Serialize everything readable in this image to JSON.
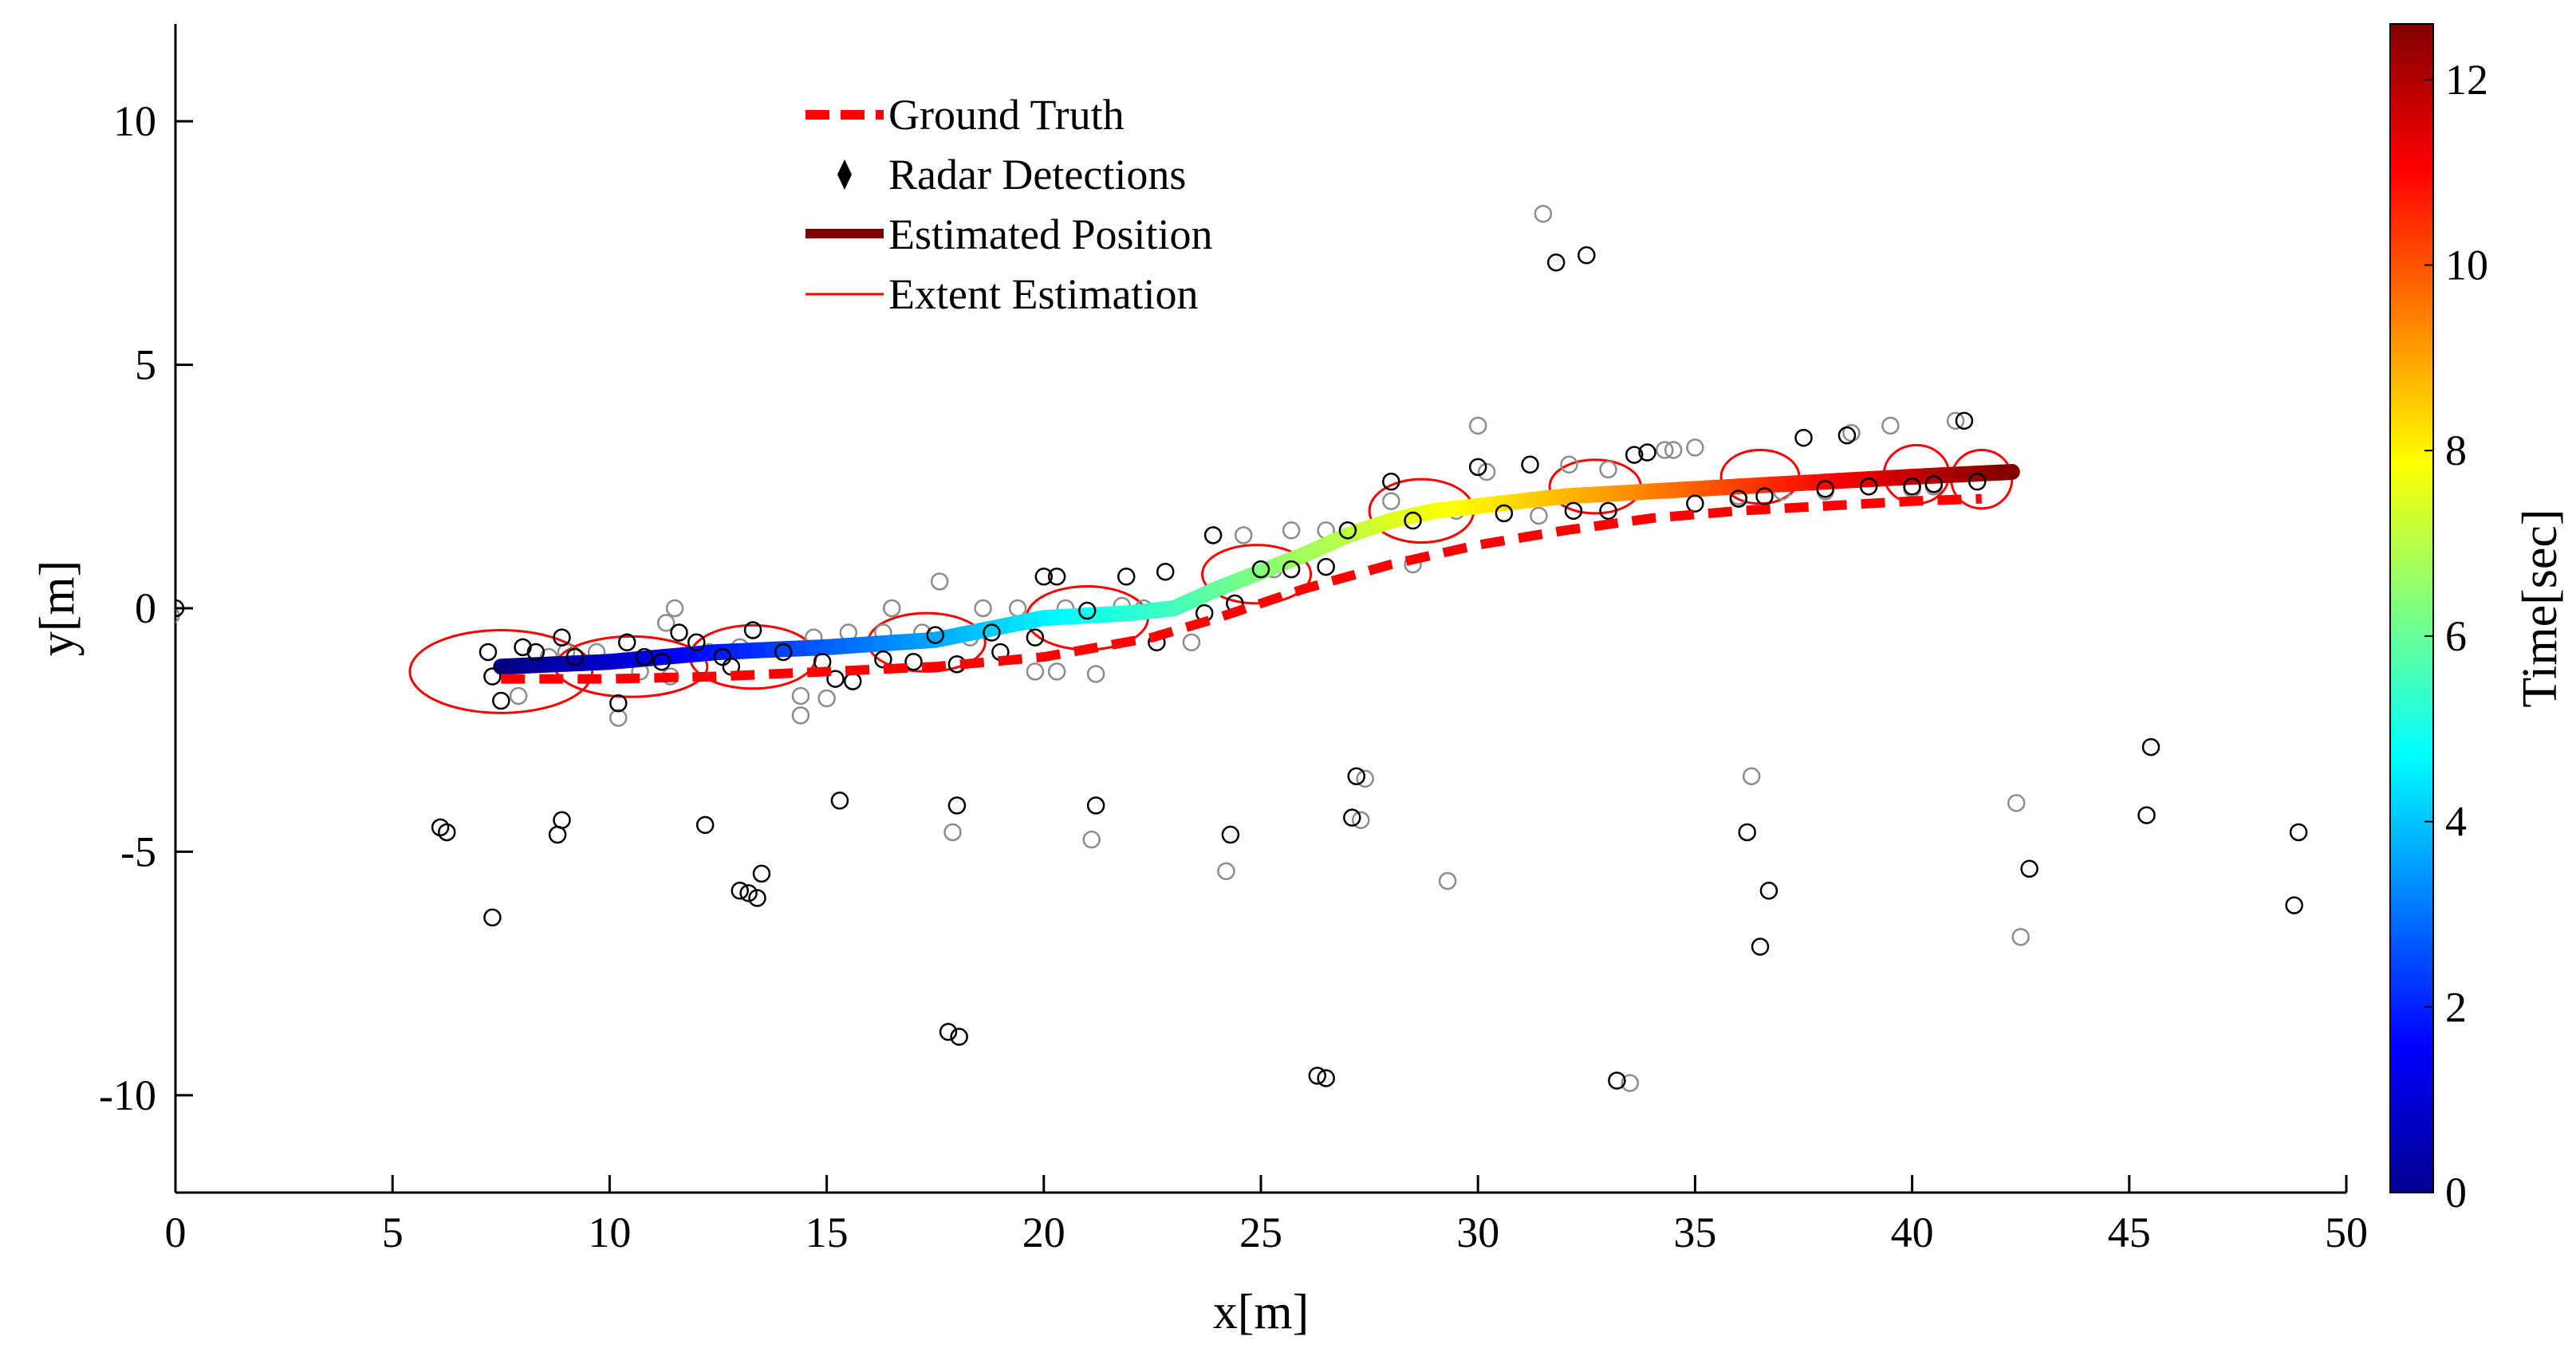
{
  "chart_data": {
    "type": "scatter",
    "xlabel": "x[m]",
    "ylabel": "y[m]",
    "xlim": [
      0,
      50
    ],
    "ylim": [
      -12,
      12
    ],
    "xticks": [
      0,
      5,
      10,
      15,
      20,
      25,
      30,
      35,
      40,
      45,
      50
    ],
    "yticks": [
      -10,
      -5,
      0,
      5,
      10
    ],
    "xtick_labels": [
      "0",
      "5",
      "10",
      "15",
      "20",
      "25",
      "30",
      "35",
      "40",
      "45",
      "50"
    ],
    "ytick_labels": [
      "-10",
      "-5",
      "0",
      "5",
      "10"
    ],
    "grid": false,
    "legend": {
      "placement": "top-center",
      "entries": [
        "Ground Truth",
        "Radar Detections",
        "Estimated Position",
        "Extent Estimation"
      ]
    },
    "colorbar": {
      "label": "Time[sec]",
      "range": [
        0,
        12.6
      ],
      "ticks": [
        0,
        2,
        4,
        6,
        8,
        10,
        12
      ],
      "tick_labels": [
        "0",
        "2",
        "4",
        "6",
        "8",
        "10",
        "12"
      ],
      "colormap": "jet"
    },
    "series": [
      {
        "name": "Ground Truth",
        "style": "dashed",
        "color": "#ff0000",
        "x": [
          7.5,
          10,
          12.5,
          15,
          17.5,
          20,
          22.5,
          24,
          26,
          28,
          30,
          32,
          34,
          36,
          38,
          40,
          41.6
        ],
        "y": [
          -1.45,
          -1.45,
          -1.4,
          -1.3,
          -1.2,
          -1.0,
          -0.6,
          -0.2,
          0.4,
          0.9,
          1.3,
          1.6,
          1.85,
          2.0,
          2.1,
          2.2,
          2.25
        ]
      },
      {
        "name": "Estimated Position",
        "color": "#800000",
        "colored_by": "time",
        "x": [
          7.5,
          10,
          12.5,
          15,
          17.5,
          20,
          22,
          23,
          24,
          25,
          26,
          27,
          28,
          29,
          30,
          32,
          34,
          36,
          38,
          40,
          42.3
        ],
        "y": [
          -1.2,
          -1.1,
          -0.9,
          -0.8,
          -0.65,
          -0.2,
          -0.1,
          0.0,
          0.4,
          0.75,
          1.1,
          1.5,
          1.8,
          2.0,
          2.1,
          2.3,
          2.4,
          2.5,
          2.6,
          2.7,
          2.8
        ],
        "t": [
          0.0,
          0.9,
          1.8,
          2.7,
          3.6,
          4.5,
          5.2,
          5.5,
          5.9,
          6.3,
          6.7,
          7.0,
          7.4,
          7.7,
          8.0,
          8.7,
          9.4,
          10.2,
          10.9,
          11.7,
          12.6
        ]
      },
      {
        "name": "Extent Estimation",
        "color": "#ff0000",
        "ellipses": [
          {
            "cx": 7.5,
            "cy": -1.3,
            "rx": 2.1,
            "ry": 0.85
          },
          {
            "cx": 10.5,
            "cy": -1.2,
            "rx": 1.75,
            "ry": 0.62
          },
          {
            "cx": 13.3,
            "cy": -1.0,
            "rx": 1.45,
            "ry": 0.65
          },
          {
            "cx": 17.3,
            "cy": -0.7,
            "rx": 1.35,
            "ry": 0.6
          },
          {
            "cx": 21.0,
            "cy": -0.2,
            "rx": 1.4,
            "ry": 0.65
          },
          {
            "cx": 24.9,
            "cy": 0.7,
            "rx": 1.25,
            "ry": 0.6
          },
          {
            "cx": 28.7,
            "cy": 2.0,
            "rx": 1.2,
            "ry": 0.65
          },
          {
            "cx": 32.7,
            "cy": 2.5,
            "rx": 1.05,
            "ry": 0.55
          },
          {
            "cx": 36.5,
            "cy": 2.7,
            "rx": 0.9,
            "ry": 0.55
          },
          {
            "cx": 40.1,
            "cy": 2.75,
            "rx": 0.75,
            "ry": 0.6
          },
          {
            "cx": 41.6,
            "cy": 2.65,
            "rx": 0.7,
            "ry": 0.6
          }
        ]
      },
      {
        "name": "Radar Detections",
        "marker": "open-circle",
        "points_black": [
          [
            0,
            0
          ],
          [
            7.2,
            -0.9
          ],
          [
            7.3,
            -1.4
          ],
          [
            7.5,
            -1.9
          ],
          [
            8.0,
            -0.8
          ],
          [
            8.3,
            -0.9
          ],
          [
            8.9,
            -0.6
          ],
          [
            9.2,
            -1.0
          ],
          [
            10.2,
            -1.95
          ],
          [
            10.4,
            -0.7
          ],
          [
            10.8,
            -1.0
          ],
          [
            11.2,
            -1.1
          ],
          [
            11.6,
            -0.5
          ],
          [
            12.0,
            -0.7
          ],
          [
            12.6,
            -1.0
          ],
          [
            12.8,
            -1.2
          ],
          [
            13.3,
            -0.45
          ],
          [
            14.0,
            -0.9
          ],
          [
            14.9,
            -1.1
          ],
          [
            15.2,
            -1.45
          ],
          [
            15.6,
            -1.5
          ],
          [
            16.3,
            -1.05
          ],
          [
            17.0,
            -1.1
          ],
          [
            17.5,
            -0.55
          ],
          [
            18.0,
            -1.15
          ],
          [
            18.8,
            -0.5
          ],
          [
            19.0,
            -0.9
          ],
          [
            19.8,
            -0.6
          ],
          [
            20.0,
            0.65
          ],
          [
            20.3,
            0.65
          ],
          [
            21.0,
            -0.05
          ],
          [
            21.9,
            0.65
          ],
          [
            22.6,
            -0.7
          ],
          [
            22.8,
            0.75
          ],
          [
            23.7,
            -0.1
          ],
          [
            23.9,
            1.5
          ],
          [
            24.4,
            0.1
          ],
          [
            25.0,
            0.8
          ],
          [
            25.7,
            0.8
          ],
          [
            26.5,
            0.85
          ],
          [
            27.0,
            1.6
          ],
          [
            28.0,
            2.6
          ],
          [
            28.5,
            1.8
          ],
          [
            30.0,
            2.9
          ],
          [
            30.6,
            1.95
          ],
          [
            31.2,
            2.95
          ],
          [
            32.2,
            2.0
          ],
          [
            33.0,
            2.0
          ],
          [
            33.6,
            3.15
          ],
          [
            33.9,
            3.2
          ],
          [
            35.0,
            2.15
          ],
          [
            36.0,
            2.25
          ],
          [
            36.6,
            2.3
          ],
          [
            37.5,
            3.5
          ],
          [
            38.0,
            2.45
          ],
          [
            38.5,
            3.55
          ],
          [
            39.0,
            2.5
          ],
          [
            40.0,
            2.5
          ],
          [
            40.5,
            2.55
          ],
          [
            41.2,
            3.85
          ],
          [
            41.5,
            2.6
          ],
          [
            6.1,
            -4.5
          ],
          [
            6.25,
            -4.6
          ],
          [
            7.3,
            -6.35
          ],
          [
            8.9,
            -4.35
          ],
          [
            8.8,
            -4.65
          ],
          [
            12.2,
            -4.45
          ],
          [
            13.0,
            -5.8
          ],
          [
            13.2,
            -5.85
          ],
          [
            13.5,
            -5.45
          ],
          [
            13.4,
            -5.95
          ],
          [
            15.3,
            -3.95
          ],
          [
            18.0,
            -4.05
          ],
          [
            17.8,
            -8.7
          ],
          [
            18.05,
            -8.8
          ],
          [
            21.2,
            -4.05
          ],
          [
            24.3,
            -4.65
          ],
          [
            26.3,
            -9.6
          ],
          [
            26.5,
            -9.65
          ],
          [
            27.2,
            -3.45
          ],
          [
            27.1,
            -4.3
          ],
          [
            31.8,
            7.1
          ],
          [
            32.5,
            7.25
          ],
          [
            33.2,
            -9.7
          ],
          [
            36.2,
            -4.6
          ],
          [
            36.5,
            -6.95
          ],
          [
            36.7,
            -5.8
          ],
          [
            42.7,
            -5.35
          ],
          [
            45.4,
            -4.25
          ],
          [
            45.5,
            -2.85
          ],
          [
            48.8,
            -6.1
          ],
          [
            48.9,
            -4.6
          ]
        ],
        "points_gray": [
          [
            -0.1,
            -0.15
          ],
          [
            7.9,
            -1.8
          ],
          [
            8.6,
            -1.0
          ],
          [
            9.0,
            -0.9
          ],
          [
            9.7,
            -0.9
          ],
          [
            10.2,
            -2.25
          ],
          [
            10.7,
            -1.3
          ],
          [
            11.4,
            -1.4
          ],
          [
            11.3,
            -0.3
          ],
          [
            11.5,
            0.0
          ],
          [
            12.3,
            -0.9
          ],
          [
            13.0,
            -0.8
          ],
          [
            14.4,
            -2.2
          ],
          [
            14.4,
            -1.8
          ],
          [
            14.7,
            -0.6
          ],
          [
            15.0,
            -1.85
          ],
          [
            15.5,
            -0.5
          ],
          [
            16.3,
            -0.5
          ],
          [
            16.5,
            0.0
          ],
          [
            17.2,
            -0.5
          ],
          [
            17.6,
            0.55
          ],
          [
            18.3,
            -0.6
          ],
          [
            18.6,
            0.0
          ],
          [
            19.4,
            0.0
          ],
          [
            19.8,
            -1.3
          ],
          [
            20.3,
            -1.3
          ],
          [
            20.5,
            0.0
          ],
          [
            21.2,
            -1.35
          ],
          [
            21.8,
            0.05
          ],
          [
            22.3,
            0.0
          ],
          [
            23.4,
            -0.7
          ],
          [
            24.6,
            1.5
          ],
          [
            25.3,
            0.8
          ],
          [
            25.7,
            1.6
          ],
          [
            26.5,
            1.6
          ],
          [
            27.4,
            -3.5
          ],
          [
            27.3,
            -4.35
          ],
          [
            28.0,
            2.2
          ],
          [
            28.5,
            0.9
          ],
          [
            29.5,
            2.0
          ],
          [
            30.0,
            3.75
          ],
          [
            30.2,
            2.8
          ],
          [
            31.5,
            8.1
          ],
          [
            31.4,
            1.9
          ],
          [
            32.1,
            2.95
          ],
          [
            33.0,
            2.85
          ],
          [
            34.3,
            3.25
          ],
          [
            34.5,
            3.25
          ],
          [
            35.0,
            3.3
          ],
          [
            36.0,
            2.3
          ],
          [
            36.3,
            -3.45
          ],
          [
            37.0,
            2.4
          ],
          [
            38.0,
            2.4
          ],
          [
            38.6,
            3.6
          ],
          [
            39.5,
            3.75
          ],
          [
            40.0,
            2.45
          ],
          [
            40.5,
            2.5
          ],
          [
            41.0,
            3.85
          ],
          [
            42.4,
            -4.0
          ],
          [
            42.5,
            -6.75
          ],
          [
            24.2,
            -5.4
          ],
          [
            29.3,
            -5.6
          ],
          [
            33.5,
            -9.75
          ],
          [
            17.9,
            -4.6
          ],
          [
            21.1,
            -4.75
          ]
        ]
      }
    ]
  }
}
